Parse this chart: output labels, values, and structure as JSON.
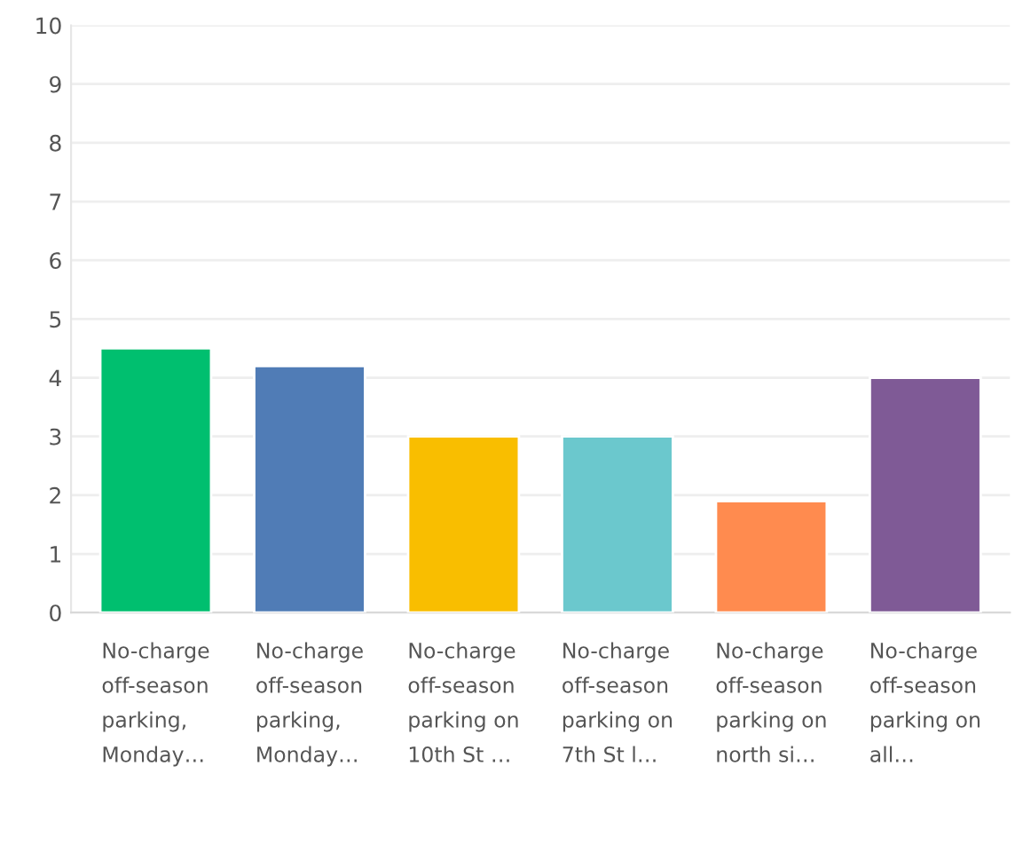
{
  "chart_data": {
    "type": "bar",
    "categories": [
      "No-charge\noff-season\nparking,\nMonday…",
      "No-charge\noff-season\nparking,\nMonday…",
      "No-charge\noff-season\nparking on\n10th St …",
      "No-charge\noff-season\nparking on\n7th St l…",
      "No-charge\noff-season\nparking on\nnorth si…",
      "No-charge\noff-season\nparking on\nall…"
    ],
    "values": [
      4.5,
      4.2,
      3.0,
      3.0,
      1.9,
      4.0
    ],
    "colors": [
      "#00bf6f",
      "#507cb6",
      "#f9be00",
      "#6bc8cd",
      "#ff8b4f",
      "#7f5a96"
    ],
    "ylim": [
      0,
      10
    ],
    "yticks": [
      0,
      1,
      2,
      3,
      4,
      5,
      6,
      7,
      8,
      9,
      10
    ],
    "grid": "y"
  }
}
